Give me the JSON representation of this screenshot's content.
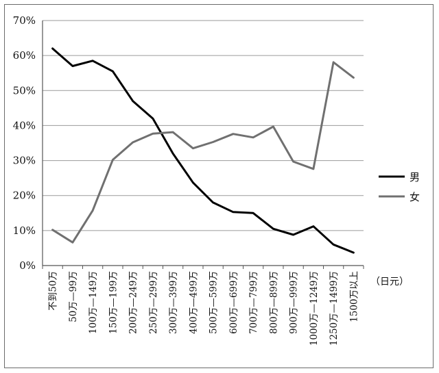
{
  "chart_data": {
    "type": "line",
    "title": "",
    "xlabel": "",
    "ylabel": "",
    "x_unit": "（日元）",
    "categories": [
      "不到50万",
      "50万—99万",
      "100万—149万",
      "150万—199万",
      "200万—249万",
      "250万—299万",
      "300万—399万",
      "400万—499万",
      "500万—599万",
      "600万—699万",
      "700万—799万",
      "800万—899万",
      "900万—999万",
      "1000万—1249万",
      "1250万—1499万",
      "1500万以上"
    ],
    "y_ticks": [
      "0%",
      "10%",
      "20%",
      "30%",
      "40%",
      "50%",
      "60%",
      "70%"
    ],
    "ylim": [
      0,
      70
    ],
    "grid": true,
    "legend_position": "right",
    "series": [
      {
        "name": "男",
        "color": "#000000",
        "values": [
          62,
          57,
          58.5,
          55.5,
          47,
          42,
          32,
          23.7,
          18,
          15.3,
          15,
          10.5,
          8.8,
          11.2,
          6,
          3.7
        ]
      },
      {
        "name": "女",
        "color": "#707070",
        "values": [
          10.2,
          6.6,
          15.7,
          30.2,
          35.2,
          37.7,
          38.1,
          33.5,
          35.3,
          37.6,
          36.6,
          39.7,
          29.7,
          27.6,
          58.1,
          53.7
        ]
      }
    ]
  }
}
